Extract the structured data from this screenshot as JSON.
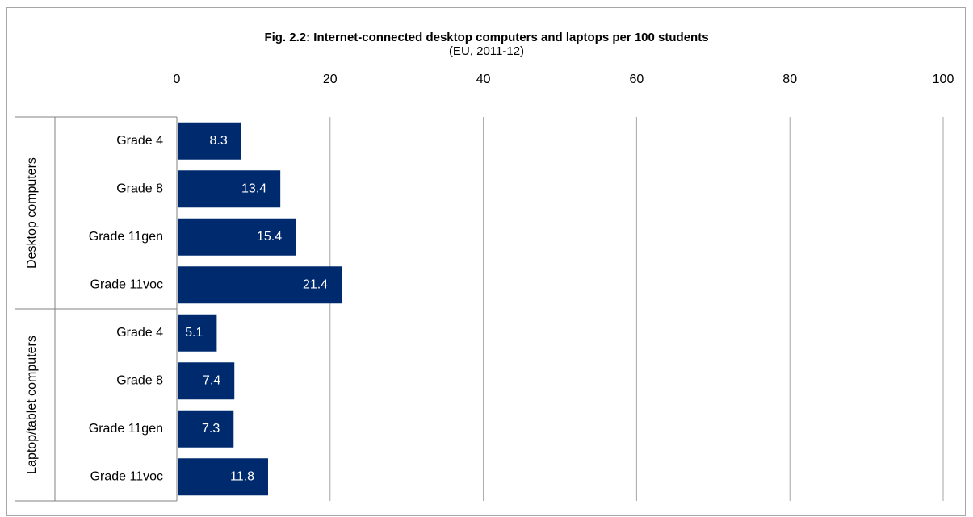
{
  "colors": {
    "bar": "#002a6e",
    "bar_label": "#ffffff",
    "gridline": "#a6a6a6",
    "axis": "#808080",
    "frame": "#a6a6a6"
  },
  "chart_data": {
    "type": "bar",
    "orientation": "horizontal",
    "title": "Fig. 2.2: Internet-connected desktop computers and laptops per 100 students",
    "subtitle": "(EU, 2011-12)",
    "xlim": [
      0,
      100
    ],
    "x_ticks": [
      "0",
      "20",
      "40",
      "60",
      "80",
      "100"
    ],
    "x_axis_position": "top",
    "grid": "vertical",
    "legend": "none",
    "groups": [
      {
        "name": "Desktop computers",
        "categories": [
          "Grade 4",
          "Grade 8",
          "Grade 11gen",
          "Grade 11voc"
        ],
        "values": [
          8.3,
          13.4,
          15.4,
          21.4
        ],
        "labels": [
          "8.3",
          "13.4",
          "15.4",
          "21.4"
        ]
      },
      {
        "name": "Laptop/tablet computers",
        "categories": [
          "Grade 4",
          "Grade 8",
          "Grade 11gen",
          "Grade 11voc"
        ],
        "values": [
          5.1,
          7.4,
          7.3,
          11.8
        ],
        "labels": [
          "5.1",
          "7.4",
          "7.3",
          "11.8"
        ]
      }
    ]
  }
}
